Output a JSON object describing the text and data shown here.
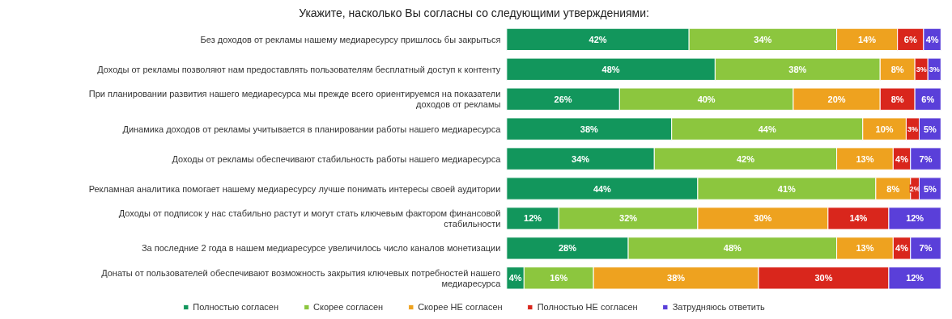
{
  "chart_data": {
    "type": "bar",
    "orientation": "horizontal",
    "stacked": true,
    "title": "Укажите, насколько Вы согласны со следующими утверждениями:",
    "categories": [
      "Без доходов от рекламы нашему медиаресурсу пришлось бы закрыться",
      "Доходы от рекламы позволяют нам предоставлять пользователям бесплатный доступ к контенту",
      "При планировании развития нашего медиаресурса мы прежде всего ориентируемся на показатели доходов от рекламы",
      "Динамика доходов от рекламы учитывается в планировании работы нашего медиаресурса",
      "Доходы от рекламы обеспечивают стабильность работы нашего медиаресурса",
      "Рекламная аналитика помогает нашему медиаресурсу лучше понимать интересы своей аудитории",
      "Доходы от подписок у нас стабильно растут и могут стать ключевым фактором финансовой стабильности",
      "За последние 2 года в нашем медиаресурсе увеличилось число каналов монетизации",
      "Донаты от пользователей обеспечивают возможность закрытия ключевых потребностей нашего медиаресурса"
    ],
    "series": [
      {
        "name": "Полностью согласен",
        "color": "#12965c",
        "values": [
          42,
          48,
          26,
          38,
          34,
          44,
          12,
          28,
          4
        ],
        "value_labels": [
          "42%",
          "48%",
          "26%",
          "38%",
          "34%",
          "44%",
          "12%",
          "28%",
          "4%"
        ]
      },
      {
        "name": "Скорее согласен",
        "color": "#8cc63e",
        "values": [
          34,
          38,
          40,
          44,
          42,
          41,
          32,
          48,
          16
        ],
        "value_labels": [
          "34%",
          "38%",
          "40%",
          "44%",
          "42%",
          "41%",
          "32%",
          "48%",
          "16%"
        ]
      },
      {
        "name": "Скорее НЕ согласен",
        "color": "#eea21f",
        "values": [
          14,
          8,
          20,
          10,
          13,
          8,
          30,
          13,
          38
        ],
        "value_labels": [
          "14%",
          "8%",
          "20%",
          "10%",
          "13%",
          "8%",
          "30%",
          "13%",
          "38%"
        ]
      },
      {
        "name": "Полностью НЕ согласен",
        "color": "#d9261c",
        "values": [
          6,
          3,
          8,
          3,
          4,
          2,
          14,
          4,
          30
        ],
        "value_labels": [
          "6%",
          "3%",
          "8%",
          "3%",
          "4%",
          "2%",
          "14%",
          "4%",
          "30%"
        ]
      },
      {
        "name": "Затрудняюсь ответить",
        "color": "#5a3fd9",
        "values": [
          4,
          3,
          6,
          5,
          7,
          5,
          12,
          7,
          12
        ],
        "value_labels": [
          "4%",
          "3%",
          "6%",
          "5%",
          "7%",
          "5%",
          "12%",
          "7%",
          "12%"
        ]
      }
    ],
    "legend": "bottom",
    "grid": false
  }
}
